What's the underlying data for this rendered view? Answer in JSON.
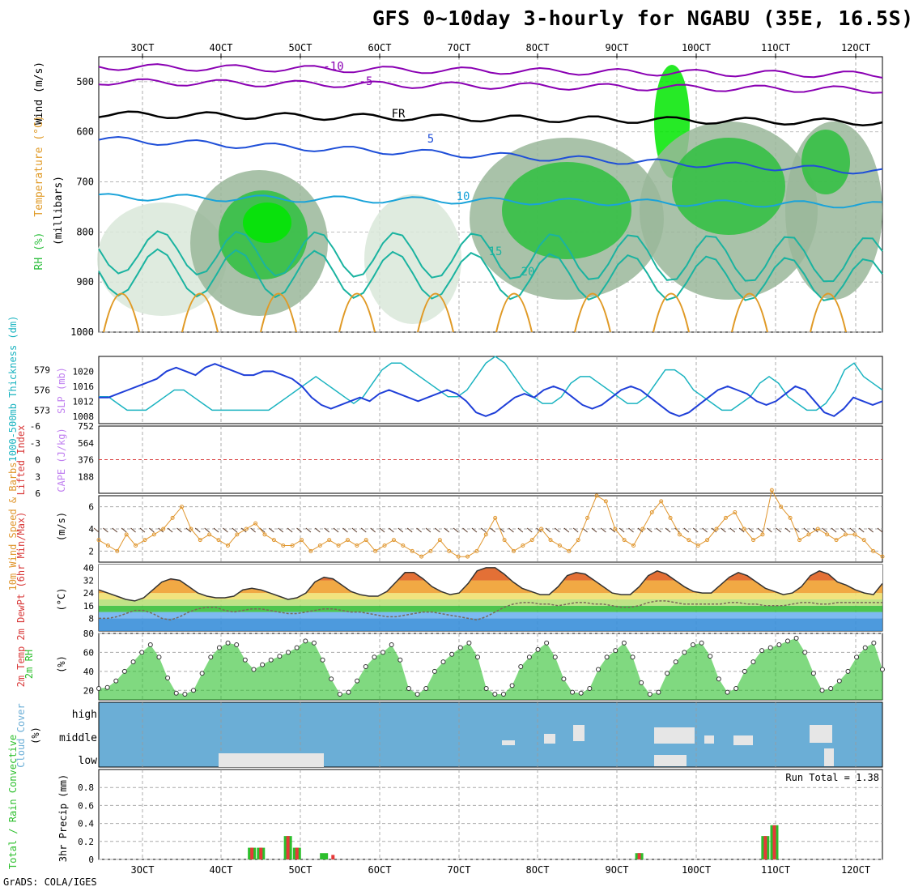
{
  "title": "GFS 0~10day 3-hourly for NGABU (35E, 16.5S)",
  "credit": "GrADS: COLA/IGES",
  "colors": {
    "rh_light": "#d9e8d9",
    "rh_mid": "#9ab79a",
    "rh_bright": "#00e600",
    "rh_green": "#2fbf3f",
    "temp_purple": "#8a00b3",
    "temp_blue": "#1f4fd8",
    "temp_cyan": "#1aa3d9",
    "temp_teal": "#1ab3a0",
    "temp_orange": "#e09a26",
    "temp_magenta": "#cc0080",
    "freeze": "#000000",
    "slp": "#1f3fd8",
    "thickness": "#1ab3c0",
    "cape": "#c080f0",
    "lifted_index": "#d93b3b",
    "wind_speed": "#e0962e",
    "barb": "#5a3a2a",
    "dewpoint": "#7a6a5a",
    "rh2m": "#2cbf2c",
    "cloud_bg": "#6baed6",
    "cloud_fill": "#e6e6e6",
    "precip_total": "#2cbf2c",
    "precip_conv": "#e63939"
  },
  "chart_data": [
    {
      "id": "upper_air",
      "type": "heatmap",
      "panel_labels": [
        "RH (%)",
        "Temperature (°C)",
        "Wind (m/s)"
      ],
      "ylabel": "(millibars)",
      "yticks": [
        500,
        600,
        700,
        800,
        900,
        1000
      ],
      "ylim": [
        450,
        1000
      ],
      "x_top_ticks": [
        "3OCT",
        "4OCT",
        "5OCT",
        "6OCT",
        "7OCT",
        "8OCT",
        "9OCT",
        "10OCT",
        "11OCT",
        "12OCT"
      ],
      "temperature_isotherms": [
        {
          "label": "-10",
          "pressure": 470,
          "color": "temp_purple"
        },
        {
          "label": "-5",
          "pressure": 500,
          "color": "temp_purple"
        },
        {
          "label": "FR",
          "pressure": 565,
          "color": "freeze"
        },
        {
          "label": "5",
          "pressure": 615,
          "color": "temp_blue"
        },
        {
          "label": "10",
          "pressure": 730,
          "color": "temp_cyan"
        },
        {
          "label": "15",
          "pressure": 840,
          "color": "temp_teal"
        },
        {
          "label": "20",
          "pressure": 880,
          "color": "temp_teal"
        }
      ],
      "contour_labels": [
        "-10",
        "-5",
        "FR",
        "5",
        "10",
        "15",
        "20"
      ]
    },
    {
      "id": "slp_thickness",
      "type": "line",
      "left_label": "1000-500mb Thickness (dm)",
      "right_label": "SLP (mb)",
      "thickness_ticks": [
        573,
        576,
        579
      ],
      "slp_ticks": [
        1008,
        1012,
        1016,
        1020
      ],
      "slp_ylim": [
        1006,
        1024
      ],
      "thickness_ylim": [
        571,
        581
      ],
      "series": [
        {
          "name": "SLP",
          "values": [
            1013,
            1013,
            1014,
            1015,
            1016,
            1017,
            1018,
            1020,
            1021,
            1020,
            1019,
            1021,
            1022,
            1021,
            1020,
            1019,
            1019,
            1020,
            1020,
            1019,
            1018,
            1016,
            1013,
            1011,
            1010,
            1011,
            1012,
            1013,
            1012,
            1014,
            1015,
            1014,
            1013,
            1012,
            1013,
            1014,
            1015,
            1014,
            1012,
            1009,
            1008,
            1009,
            1011,
            1013,
            1014,
            1013,
            1015,
            1016,
            1015,
            1013,
            1011,
            1010,
            1011,
            1013,
            1015,
            1016,
            1015,
            1013,
            1011,
            1009,
            1008,
            1009,
            1011,
            1013,
            1015,
            1016,
            1015,
            1014,
            1012,
            1011,
            1012,
            1014,
            1016,
            1015,
            1012,
            1009,
            1008,
            1010,
            1013,
            1012,
            1011,
            1012
          ]
        },
        {
          "name": "Thickness",
          "values": [
            575,
            575,
            574,
            573,
            573,
            573,
            574,
            575,
            576,
            576,
            575,
            574,
            573,
            573,
            573,
            573,
            573,
            573,
            573,
            574,
            575,
            576,
            577,
            578,
            577,
            576,
            575,
            574,
            575,
            577,
            579,
            580,
            580,
            579,
            578,
            577,
            576,
            575,
            575,
            576,
            578,
            580,
            581,
            580,
            578,
            576,
            575,
            574,
            574,
            575,
            577,
            578,
            578,
            577,
            576,
            575,
            574,
            574,
            575,
            577,
            579,
            579,
            578,
            576,
            575,
            574,
            573,
            573,
            574,
            575,
            577,
            578,
            577,
            575,
            574,
            573,
            573,
            574,
            576,
            579,
            580,
            578,
            577,
            576
          ]
        }
      ]
    },
    {
      "id": "cape_li",
      "type": "bar",
      "left_label": "Lifted Index",
      "right_label": "CAPE (J/kg)",
      "li_ticks": [
        -6,
        -3,
        0,
        3,
        6
      ],
      "cape_ticks": [
        188,
        376,
        564,
        752
      ],
      "cape_ylim": [
        0,
        752
      ],
      "li_ylim": [
        6,
        -6
      ],
      "series": [
        {
          "name": "CAPE",
          "values": [
            0,
            0,
            0,
            0,
            0,
            0,
            0,
            0,
            0,
            0,
            0,
            0,
            0,
            0,
            0,
            0,
            0,
            0,
            0,
            0,
            0,
            0,
            0,
            0,
            0,
            0,
            0,
            0,
            0,
            0,
            0,
            0,
            0,
            0,
            0,
            0,
            0,
            0,
            0,
            0,
            0,
            0,
            0,
            0,
            0,
            0,
            0,
            0,
            0,
            0,
            0,
            0,
            0,
            0,
            0,
            0,
            0,
            0,
            0,
            0,
            0,
            0,
            0,
            0,
            0,
            0,
            0,
            0,
            0,
            0,
            0,
            0,
            0,
            0,
            0,
            0,
            0,
            0,
            0,
            0,
            0,
            0
          ]
        },
        {
          "name": "LI",
          "values": [
            6,
            6,
            6,
            6,
            6,
            6,
            6,
            6,
            6,
            6,
            6,
            6,
            6,
            6,
            6,
            6,
            6,
            6,
            6,
            6,
            6,
            6,
            6,
            6,
            6,
            6,
            6,
            6,
            6,
            6,
            6,
            6,
            6,
            6,
            6,
            6,
            6,
            6,
            6,
            6,
            6,
            6,
            6,
            6,
            6,
            6,
            6,
            6,
            6,
            6,
            6,
            6,
            6,
            6,
            6,
            6,
            6,
            6,
            6,
            6,
            6,
            6,
            6,
            6,
            6,
            6,
            6,
            6,
            6,
            6,
            6,
            6,
            6,
            6,
            6,
            6,
            6,
            6,
            6,
            6,
            6,
            6
          ]
        }
      ]
    },
    {
      "id": "wind10m",
      "type": "line",
      "left_label": "10m Wind Speed & Barbs",
      "ylabel": "(m/s)",
      "yticks": [
        2,
        4,
        6
      ],
      "ylim": [
        1,
        7
      ],
      "series": [
        {
          "name": "Speed",
          "values": [
            3,
            2.5,
            2,
            3.5,
            2.5,
            3,
            3.5,
            4,
            5,
            6,
            4,
            3,
            3.5,
            3,
            2.5,
            3.5,
            4,
            4.5,
            3.5,
            3,
            2.5,
            2.5,
            3,
            2,
            2.5,
            3,
            2.5,
            3,
            2.5,
            3,
            2,
            2.5,
            3,
            2.5,
            2,
            1.5,
            2,
            3,
            2,
            1.5,
            1.5,
            2,
            3.5,
            5,
            3,
            2,
            2.5,
            3,
            4,
            3,
            2.5,
            2,
            3,
            5,
            7,
            6.5,
            4,
            3,
            2.5,
            4,
            5.5,
            6.5,
            5,
            3.5,
            3,
            2.5,
            3,
            4,
            5,
            5.5,
            4,
            3,
            3.5,
            7.5,
            6,
            5,
            3,
            3.5,
            4,
            3.5,
            3,
            3.5,
            3.5,
            3,
            2,
            1.5
          ]
        }
      ]
    },
    {
      "id": "temp2m",
      "type": "area",
      "left_label": "2m Temp 2m DewPt (6hr Min/Max)",
      "ylabel": "(°C)",
      "yticks": [
        8,
        16,
        24,
        32,
        40
      ],
      "ylim": [
        0,
        42
      ],
      "series": [
        {
          "name": "Temp",
          "values": [
            26,
            24,
            22,
            20,
            19,
            21,
            26,
            31,
            33,
            32,
            28,
            24,
            22,
            21,
            21,
            22,
            26,
            27,
            26,
            24,
            22,
            20,
            21,
            24,
            31,
            34,
            33,
            29,
            25,
            23,
            22,
            22,
            25,
            31,
            37,
            37,
            33,
            28,
            25,
            23,
            24,
            30,
            38,
            40,
            40,
            36,
            31,
            27,
            25,
            23,
            23,
            28,
            35,
            37,
            36,
            32,
            28,
            24,
            23,
            23,
            28,
            35,
            38,
            36,
            32,
            28,
            25,
            24,
            24,
            29,
            34,
            37,
            35,
            31,
            27,
            25,
            23,
            24,
            28,
            35,
            38,
            36,
            31,
            29,
            26,
            24,
            23,
            30
          ]
        },
        {
          "name": "DewPt",
          "values": [
            8,
            8,
            9,
            11,
            13,
            13,
            11,
            8,
            7,
            9,
            12,
            14,
            15,
            15,
            13,
            12,
            13,
            14,
            14,
            13,
            12,
            11,
            11,
            12,
            13,
            14,
            14,
            13,
            12,
            12,
            11,
            10,
            9,
            9,
            10,
            11,
            12,
            12,
            11,
            10,
            9,
            8,
            7,
            9,
            12,
            15,
            17,
            18,
            18,
            17,
            17,
            16,
            17,
            18,
            18,
            17,
            17,
            16,
            15,
            15,
            16,
            18,
            19,
            19,
            18,
            17,
            17,
            17,
            17,
            17,
            18,
            18,
            17,
            17,
            16,
            16,
            16,
            17,
            18,
            18,
            17,
            17,
            18,
            18,
            18,
            18,
            18,
            18
          ]
        }
      ]
    },
    {
      "id": "rh2m",
      "type": "area",
      "left_label": "2m RH",
      "ylabel": "(%)",
      "yticks": [
        20,
        40,
        60,
        80
      ],
      "ylim": [
        10,
        80
      ],
      "series": [
        {
          "name": "RH",
          "values": [
            22,
            23,
            30,
            40,
            50,
            60,
            68,
            55,
            33,
            17,
            16,
            20,
            38,
            55,
            65,
            70,
            68,
            52,
            42,
            47,
            52,
            56,
            60,
            65,
            72,
            70,
            52,
            32,
            16,
            18,
            30,
            45,
            55,
            60,
            68,
            52,
            22,
            16,
            22,
            40,
            50,
            58,
            65,
            70,
            55,
            22,
            16,
            16,
            25,
            45,
            55,
            63,
            70,
            55,
            32,
            18,
            17,
            22,
            42,
            55,
            62,
            70,
            55,
            28,
            16,
            18,
            38,
            50,
            60,
            68,
            70,
            56,
            32,
            18,
            22,
            40,
            50,
            62,
            65,
            68,
            72,
            75,
            60,
            38,
            20,
            22,
            30,
            40,
            55,
            65,
            70,
            42
          ]
        }
      ]
    },
    {
      "id": "cloud_cover",
      "type": "heatmap",
      "left_label": "Cloud Cover",
      "ylabel": "(%)",
      "levels": [
        "high",
        "middle",
        "low"
      ]
    },
    {
      "id": "precip",
      "type": "bar",
      "left_label": "Total / Rain Convective",
      "ylabel": "3hr Precip (mm)",
      "yticks": [
        0,
        0.2,
        0.4,
        0.6,
        0.8
      ],
      "ylim": [
        0,
        1.0
      ],
      "run_total_label": "Run Total = 1.38",
      "x_bottom_ticks": [
        "3OCT",
        "4OCT",
        "5OCT",
        "6OCT",
        "7OCT",
        "8OCT",
        "9OCT",
        "10OCT",
        "11OCT",
        "12OCT"
      ],
      "series": [
        {
          "name": "Total",
          "values": [
            0,
            0,
            0,
            0,
            0,
            0,
            0,
            0,
            0,
            0,
            0,
            0,
            0,
            0,
            0,
            0,
            0,
            0.13,
            0.13,
            0,
            0,
            0.26,
            0.13,
            0,
            0,
            0.07,
            0,
            0,
            0,
            0,
            0,
            0,
            0,
            0,
            0,
            0,
            0,
            0,
            0,
            0,
            0,
            0,
            0,
            0,
            0,
            0,
            0,
            0,
            0,
            0,
            0,
            0,
            0,
            0,
            0,
            0,
            0,
            0,
            0,
            0,
            0.07,
            0,
            0,
            0,
            0,
            0,
            0,
            0,
            0,
            0,
            0,
            0,
            0,
            0,
            0.26,
            0.38,
            0,
            0,
            0,
            0,
            0,
            0,
            0,
            0,
            0,
            0,
            0,
            0
          ]
        },
        {
          "name": "Convective",
          "values": [
            0,
            0,
            0,
            0,
            0,
            0,
            0,
            0,
            0,
            0,
            0,
            0,
            0,
            0,
            0,
            0,
            0,
            0.13,
            0.13,
            0,
            0,
            0.26,
            0.13,
            0,
            0,
            0,
            0.05,
            0,
            0,
            0,
            0,
            0,
            0,
            0,
            0,
            0,
            0,
            0,
            0,
            0,
            0,
            0,
            0,
            0,
            0,
            0,
            0,
            0,
            0,
            0,
            0,
            0,
            0,
            0,
            0,
            0,
            0,
            0,
            0,
            0,
            0.07,
            0,
            0,
            0,
            0,
            0,
            0,
            0,
            0,
            0,
            0,
            0,
            0,
            0,
            0.26,
            0.38,
            0,
            0,
            0,
            0,
            0,
            0,
            0,
            0,
            0,
            0,
            0,
            0
          ]
        }
      ]
    }
  ]
}
